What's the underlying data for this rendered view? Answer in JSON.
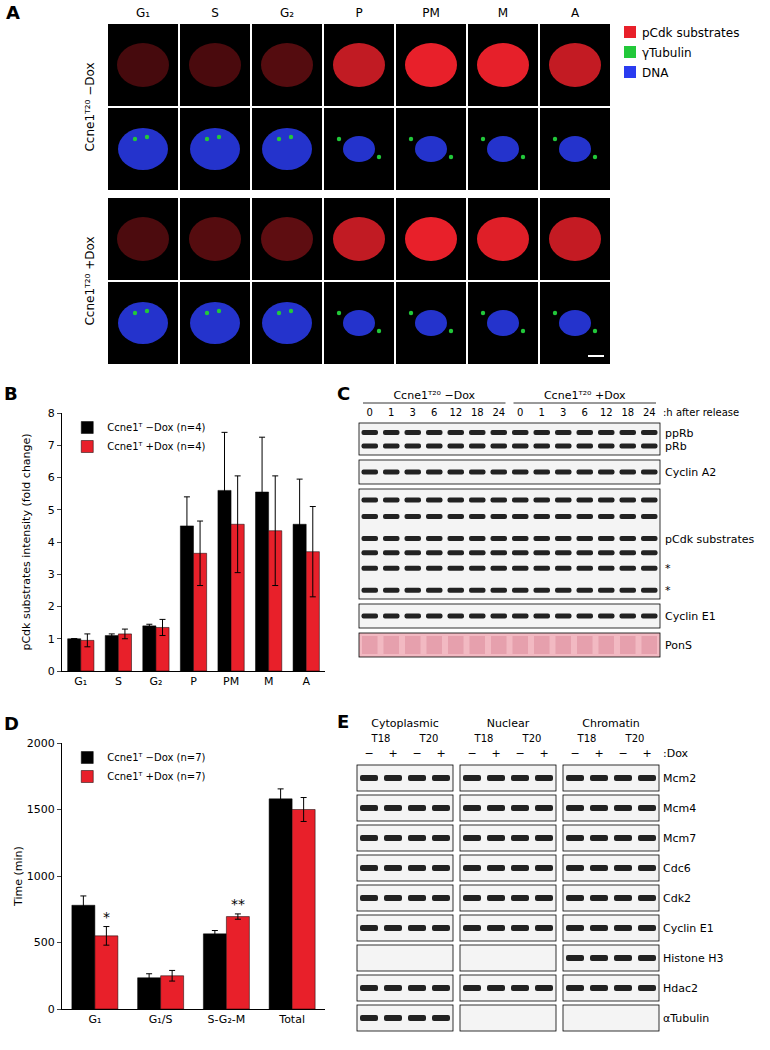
{
  "panels": {
    "A": {
      "label": "A",
      "columns": [
        "G₁",
        "S",
        "G₂",
        "P",
        "PM",
        "M",
        "A"
      ],
      "groups": [
        "Ccne1ᵀ²⁰ −Dox",
        "Ccne1ᵀ²⁰ +Dox"
      ],
      "legend": [
        {
          "name": "pCdk substrates",
          "color": "#e8202a"
        },
        {
          "name": "γTubulin",
          "color": "#22c83a"
        },
        {
          "name": "DNA",
          "color": "#2a3cf0"
        }
      ]
    },
    "C": {
      "label": "C",
      "groups": [
        "Ccne1ᵀ²⁰ −Dox",
        "Ccne1ᵀ²⁰ +Dox"
      ],
      "lanes": [
        0,
        1,
        3,
        6,
        12,
        18,
        24
      ],
      "lane_unit": ":h after release",
      "rows": [
        {
          "labels": [
            "ppRb",
            "pRb"
          ]
        },
        {
          "labels": [
            "Cyclin A2"
          ]
        },
        {
          "labels": [
            "pCdk substrates",
            "*",
            "*"
          ]
        },
        {
          "labels": [
            "Cyclin E1"
          ]
        },
        {
          "labels": [
            "PonS"
          ],
          "color": "#f2b9c2"
        }
      ]
    },
    "E": {
      "label": "E",
      "fractions": [
        "Cytoplasmic",
        "Nuclear",
        "Chromatin"
      ],
      "lines": [
        "T18",
        "T20"
      ],
      "dox": [
        "−",
        "+"
      ],
      "dox_label": ":Dox",
      "rows": [
        {
          "label": "Mcm2"
        },
        {
          "label": "Mcm4"
        },
        {
          "label": "Mcm7"
        },
        {
          "label": "Cdc6"
        },
        {
          "label": "Cdk2"
        },
        {
          "label": "Cyclin E1"
        },
        {
          "label": "Histone H3",
          "blank": [
            "Cytoplasmic",
            "Nuclear"
          ]
        },
        {
          "label": "Hdac2"
        },
        {
          "label": "αTubulin",
          "blank": [
            "Nuclear",
            "Chromatin"
          ]
        }
      ]
    }
  },
  "chart_data": [
    {
      "panel": "B",
      "type": "bar",
      "categories": [
        "G₁",
        "S",
        "G₂",
        "P",
        "PM",
        "M",
        "A"
      ],
      "series": [
        {
          "name": "Ccne1ᵀ −Dox (n=4)",
          "color": "#000000",
          "values": [
            1.0,
            1.1,
            1.4,
            4.5,
            5.6,
            5.55,
            4.55
          ],
          "errors": [
            0,
            0.05,
            0.05,
            0.9,
            1.8,
            1.7,
            1.4
          ]
        },
        {
          "name": "Ccne1ᵀ +Dox (n=4)",
          "color": "#e8202a",
          "values": [
            0.95,
            1.15,
            1.35,
            3.65,
            4.55,
            4.35,
            3.7
          ],
          "errors": [
            0.2,
            0.15,
            0.25,
            1.0,
            1.5,
            1.7,
            1.4
          ]
        }
      ],
      "y_label": "pCdk substrates intensity (fold change)",
      "ylim": [
        0,
        8
      ],
      "yticks": [
        0,
        1,
        2,
        3,
        4,
        5,
        6,
        7,
        8
      ],
      "grid": false,
      "legend": "top-left"
    },
    {
      "panel": "D",
      "type": "bar",
      "categories": [
        "G₁",
        "G₁/S",
        "S-G₂-M",
        "Total"
      ],
      "series": [
        {
          "name": "Ccne1ᵀ −Dox (n=7)",
          "color": "#000000",
          "values": [
            780,
            235,
            565,
            1580
          ],
          "errors": [
            70,
            30,
            25,
            75
          ]
        },
        {
          "name": "Ccne1ᵀ +Dox (n=7)",
          "color": "#e8202a",
          "values": [
            550,
            250,
            695,
            1500
          ],
          "errors": [
            70,
            40,
            20,
            90
          ]
        }
      ],
      "annotations": [
        {
          "category": "G₁",
          "series": "Ccne1ᵀ +Dox (n=7)",
          "text": "*"
        },
        {
          "category": "S-G₂-M",
          "series": "Ccne1ᵀ +Dox (n=7)",
          "text": "**"
        }
      ],
      "y_label": "Time (min)",
      "ylim": [
        0,
        2000
      ],
      "yticks": [
        0,
        500,
        1000,
        1500,
        2000
      ],
      "grid": false,
      "legend": "top-left"
    }
  ]
}
